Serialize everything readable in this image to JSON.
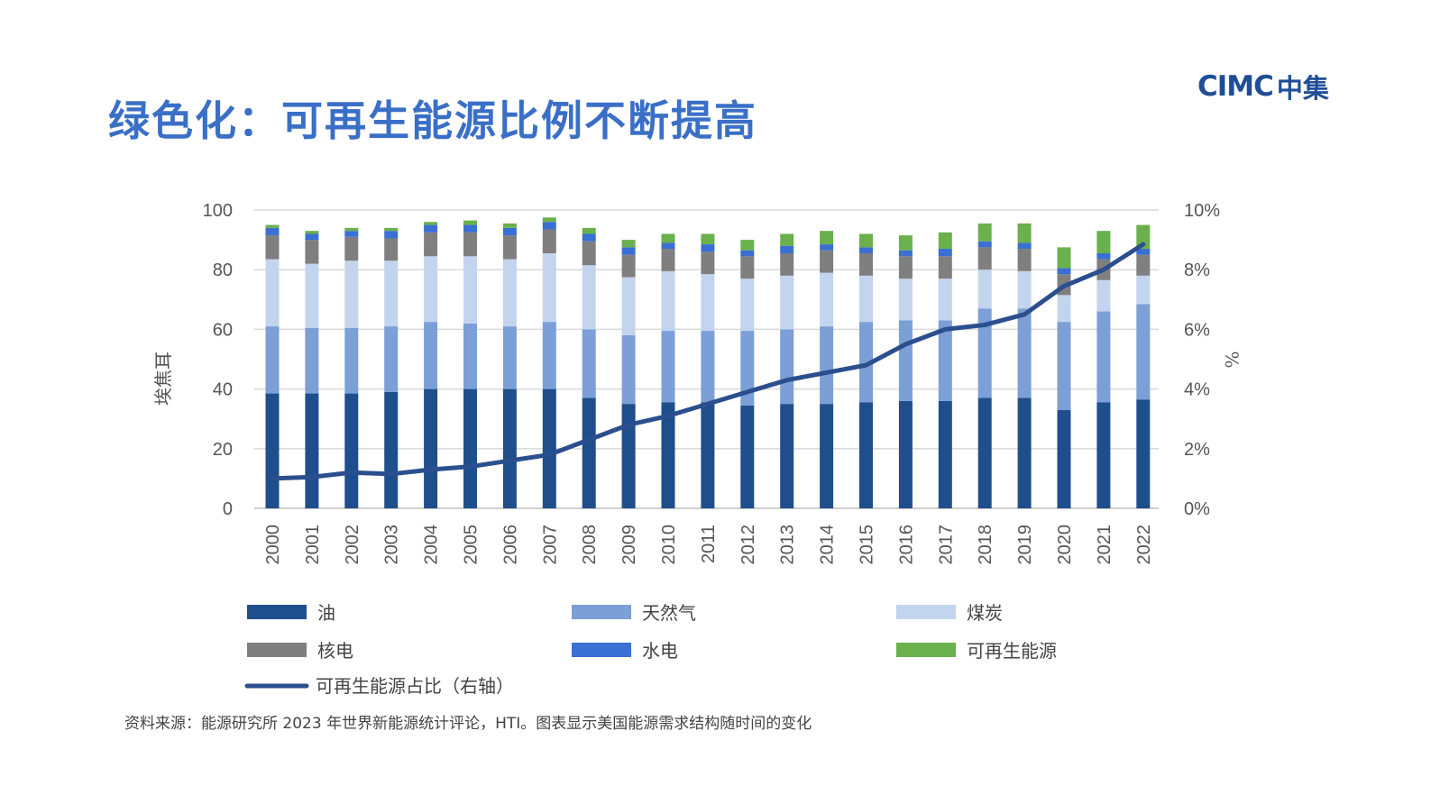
{
  "page": {
    "title": "绿色化：可再生能源比例不断提高",
    "logo_latin": "CIMC",
    "logo_cjk": "中集",
    "source": "资料来源：能源研究所 2023 年世界新能源统计评论，HTI。图表显示美国能源需求结构随时间的变化"
  },
  "chart_data": {
    "type": "bar",
    "stacked": true,
    "title": "",
    "ylabel": "埃焦耳",
    "y2label": "%",
    "ylim": [
      0,
      100
    ],
    "yticks": [
      "0",
      "20",
      "40",
      "60",
      "80",
      "100"
    ],
    "y2lim": [
      0,
      10
    ],
    "y2ticks": [
      "0%",
      "2%",
      "4%",
      "6%",
      "8%",
      "10%"
    ],
    "grid": true,
    "legend_position": "bottom",
    "categories": [
      "2000",
      "2001",
      "2002",
      "2003",
      "2004",
      "2005",
      "2006",
      "2007",
      "2008",
      "2009",
      "2010",
      "2011",
      "2012",
      "2013",
      "2014",
      "2015",
      "2016",
      "2017",
      "2018",
      "2019",
      "2020",
      "2021",
      "2022"
    ],
    "series": [
      {
        "name": "油",
        "color": "#1f4e8c",
        "values": [
          38.5,
          38.5,
          38.5,
          39,
          40,
          40,
          40,
          40,
          37,
          35,
          35.5,
          35.5,
          34.5,
          35,
          35,
          35.5,
          36,
          36,
          37,
          37,
          33,
          35.5,
          36.5
        ]
      },
      {
        "name": "天然气",
        "color": "#7b9fd6",
        "values": [
          22.5,
          22,
          22,
          22,
          22.5,
          22,
          21,
          22.5,
          23,
          23,
          24,
          24,
          25,
          25,
          26,
          27,
          27,
          27,
          30,
          30,
          29.5,
          30.5,
          32
        ]
      },
      {
        "name": "煤炭",
        "color": "#c3d4ee",
        "values": [
          22.5,
          21.5,
          22.5,
          22,
          22,
          22.5,
          22.5,
          23,
          21.5,
          19.5,
          20,
          19,
          17.5,
          18,
          18,
          15.5,
          14,
          14,
          13,
          12.5,
          9,
          10.5,
          9.5
        ]
      },
      {
        "name": "核电",
        "color": "#7f7f7f",
        "values": [
          8,
          8,
          8,
          7.5,
          8,
          8,
          8,
          8,
          8,
          7.5,
          7.5,
          7.5,
          7.5,
          7.5,
          7.5,
          7.5,
          7.5,
          7.5,
          7.5,
          7.5,
          7,
          7,
          7
        ]
      },
      {
        "name": "水电",
        "color": "#3a6fd4",
        "values": [
          2.5,
          2,
          2,
          2.5,
          2.5,
          2.5,
          2.5,
          2.5,
          2.5,
          2.5,
          2,
          2.5,
          2,
          2.5,
          2,
          2,
          2,
          2.5,
          2,
          2,
          2,
          2,
          2
        ]
      },
      {
        "name": "可再生能源",
        "color": "#6ab04c",
        "values": [
          1,
          1,
          1,
          1,
          1,
          1.5,
          1.5,
          1.5,
          2,
          2.5,
          3,
          3.5,
          3.5,
          4,
          4.5,
          4.5,
          5,
          5.5,
          6,
          6.5,
          7,
          7.5,
          8
        ]
      }
    ],
    "line_series": {
      "name": "可再生能源占比（右轴）",
      "color": "#2b4f8e",
      "axis": "right",
      "values": [
        1.0,
        1.05,
        1.2,
        1.15,
        1.3,
        1.4,
        1.6,
        1.8,
        2.3,
        2.8,
        3.1,
        3.5,
        3.9,
        4.3,
        4.55,
        4.8,
        5.5,
        6.0,
        6.15,
        6.5,
        7.45,
        8.0,
        8.85
      ]
    }
  }
}
